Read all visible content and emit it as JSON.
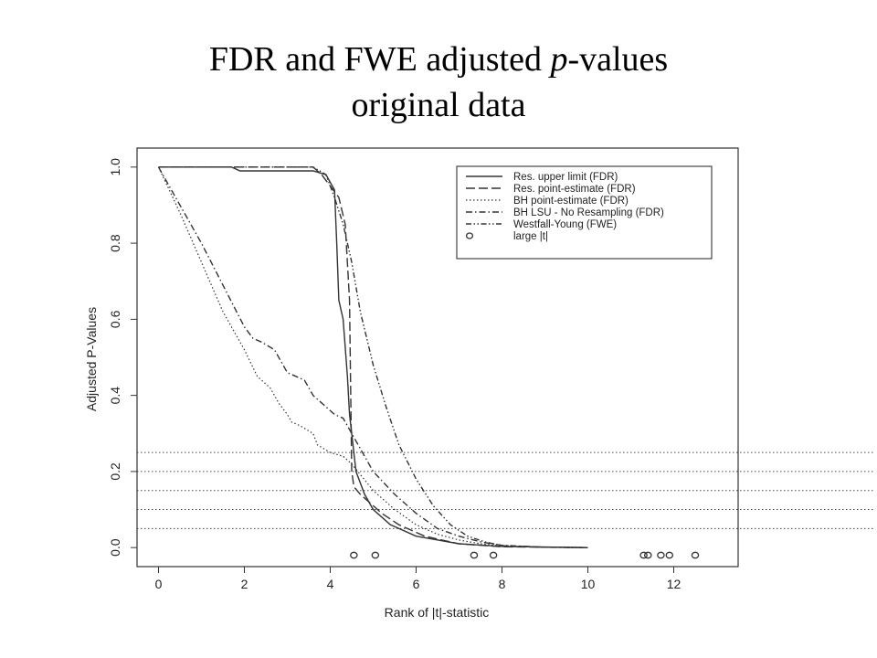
{
  "slide": {
    "title_line1_a": "FDR and FWE adjusted ",
    "title_line1_italic": "p",
    "title_line1_b": "-values",
    "title_line2": "original data"
  },
  "chart_data": {
    "type": "line",
    "xlabel": "Rank of |t|-statistic",
    "ylabel": "Adjusted P-Values",
    "xlim": [
      -0.5,
      13.5
    ],
    "ylim": [
      -0.05,
      1.05
    ],
    "x_ticks": [
      0,
      2,
      4,
      6,
      8,
      10,
      12
    ],
    "y_ticks": [
      0.0,
      0.2,
      0.4,
      0.6,
      0.8,
      1.0
    ],
    "x_tick_labels": [
      "0",
      "2",
      "4",
      "6",
      "8",
      "10",
      "12"
    ],
    "y_tick_labels": [
      "0.0",
      "0.2",
      "0.4",
      "0.6",
      "0.8",
      "1.0"
    ],
    "grid": false,
    "legend_position": "top-right",
    "reference_lines": [
      0.05,
      0.1,
      0.15,
      0.2,
      0.25
    ],
    "series": [
      {
        "name": "Res. upper limit (FDR)",
        "style": "solid",
        "x": [
          0,
          1.7,
          1.9,
          3.6,
          3.9,
          4.1,
          4.15,
          4.2,
          4.3,
          4.4,
          4.45,
          4.5,
          4.6,
          4.8,
          5.0,
          5.4,
          6.0,
          7.0,
          8.0,
          10.0
        ],
        "y": [
          1.0,
          1.0,
          0.99,
          0.99,
          0.98,
          0.94,
          0.8,
          0.65,
          0.6,
          0.45,
          0.35,
          0.3,
          0.2,
          0.14,
          0.1,
          0.06,
          0.03,
          0.01,
          0.003,
          0.0
        ]
      },
      {
        "name": "Res. point-estimate (FDR)",
        "style": "longdash",
        "x": [
          0,
          3.6,
          3.8,
          4.0,
          4.2,
          4.35,
          4.45,
          4.5,
          4.55,
          4.7,
          4.9,
          5.2,
          5.6,
          6.2,
          7.0,
          8.0,
          10.0
        ],
        "y": [
          1.0,
          1.0,
          0.98,
          0.95,
          0.92,
          0.85,
          0.65,
          0.2,
          0.16,
          0.14,
          0.12,
          0.09,
          0.06,
          0.03,
          0.01,
          0.002,
          0.0
        ]
      },
      {
        "name": "BH point-estimate (FDR)",
        "style": "dotted",
        "x": [
          0,
          0.5,
          1.0,
          1.5,
          2.0,
          2.3,
          2.6,
          2.8,
          3.0,
          3.1,
          3.3,
          3.6,
          3.7,
          4.0,
          4.3,
          4.5,
          5.0,
          5.5,
          6.0,
          6.5,
          7.0,
          7.5,
          8.0,
          9.0,
          10.0
        ],
        "y": [
          1.0,
          0.88,
          0.75,
          0.62,
          0.52,
          0.45,
          0.42,
          0.38,
          0.35,
          0.33,
          0.32,
          0.3,
          0.27,
          0.25,
          0.24,
          0.22,
          0.15,
          0.1,
          0.06,
          0.035,
          0.02,
          0.01,
          0.004,
          0.001,
          0.0
        ]
      },
      {
        "name": "BH LSU - No Resampling (FDR)",
        "style": "dashdot",
        "x": [
          0,
          0.5,
          1.0,
          1.5,
          2.0,
          2.2,
          2.4,
          2.7,
          2.9,
          3.0,
          3.2,
          3.4,
          3.6,
          3.9,
          4.1,
          4.3,
          4.5,
          5.0,
          5.5,
          6.0,
          6.5,
          7.0,
          7.5,
          8.0,
          9.0,
          10.0
        ],
        "y": [
          1.0,
          0.9,
          0.8,
          0.69,
          0.58,
          0.55,
          0.54,
          0.52,
          0.48,
          0.46,
          0.45,
          0.44,
          0.4,
          0.37,
          0.35,
          0.34,
          0.3,
          0.2,
          0.14,
          0.09,
          0.05,
          0.03,
          0.015,
          0.006,
          0.001,
          0.0
        ]
      },
      {
        "name": "Westfall-Young (FWE)",
        "style": "dashdotdot",
        "x": [
          0,
          3.6,
          3.9,
          4.1,
          4.3,
          4.5,
          4.7,
          5.0,
          5.3,
          5.6,
          6.0,
          6.4,
          6.8,
          7.2,
          7.6,
          8.0,
          9.0,
          10.0
        ],
        "y": [
          1.0,
          1.0,
          0.98,
          0.92,
          0.85,
          0.75,
          0.62,
          0.48,
          0.37,
          0.27,
          0.18,
          0.11,
          0.06,
          0.03,
          0.015,
          0.005,
          0.001,
          0.0
        ]
      }
    ],
    "large_t_points": {
      "name": "large |t|",
      "x": [
        4.55,
        5.05,
        7.35,
        7.8,
        11.3,
        11.4,
        11.7,
        11.9,
        12.5
      ],
      "y": [
        -0.02,
        -0.02,
        -0.02,
        -0.02,
        -0.02,
        -0.02,
        -0.02,
        -0.02,
        -0.02
      ]
    }
  }
}
